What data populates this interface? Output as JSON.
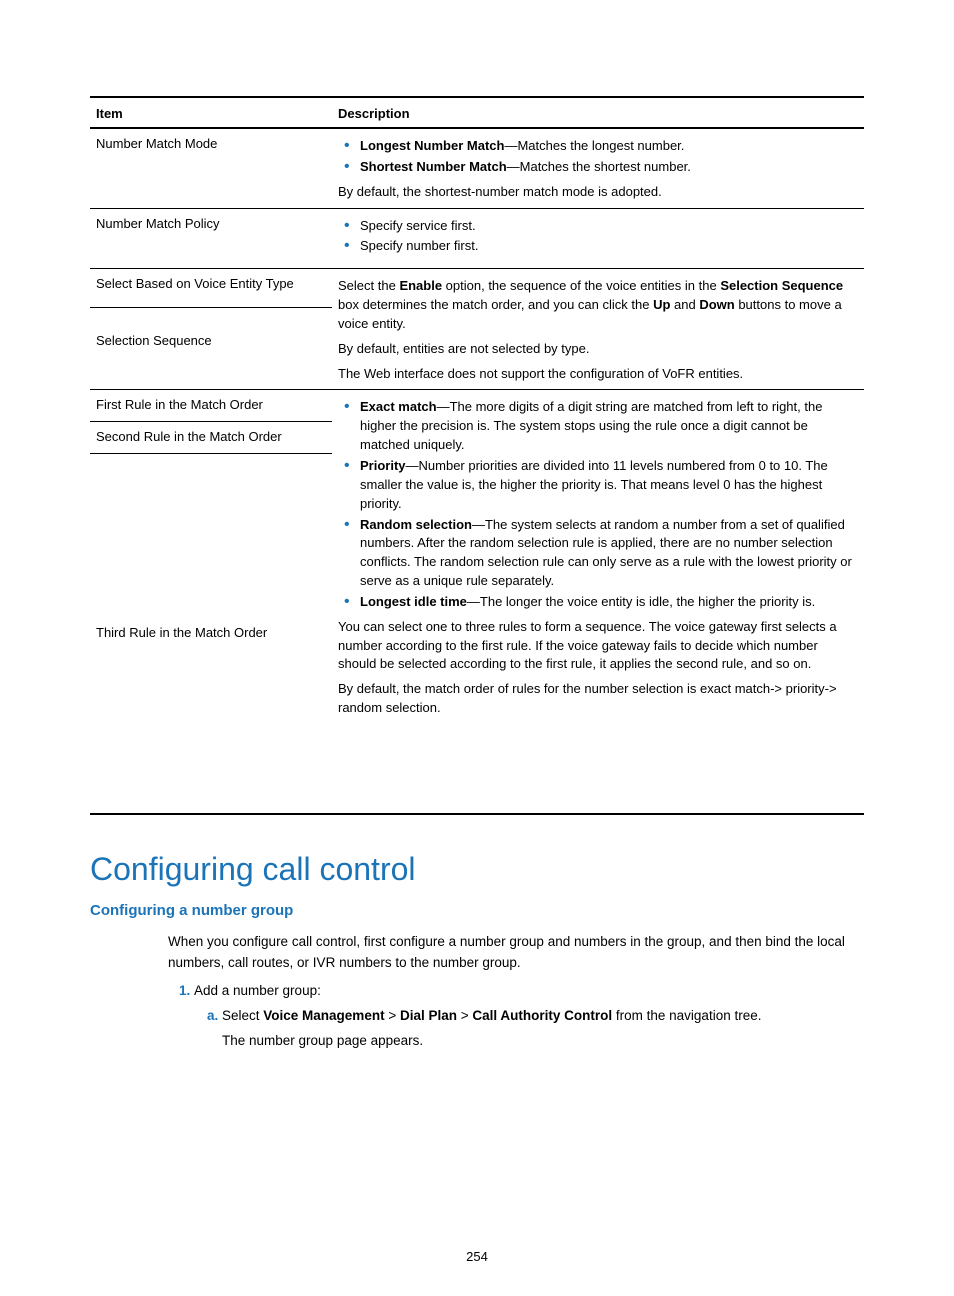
{
  "colors": {
    "accent": "#1b73b8",
    "text": "#000000",
    "bg": "#ffffff",
    "border_thick": "#000000",
    "border_thin": "#000000"
  },
  "table": {
    "header": {
      "item": "Item",
      "desc": "Description"
    },
    "rows": [
      {
        "key": "row_nmm",
        "item": "Number Match Mode",
        "bullets": [
          {
            "b": "Longest Number Match",
            "t": "—Matches the longest number."
          },
          {
            "b": "Shortest Number Match",
            "t": "—Matches the shortest number."
          }
        ],
        "after": [
          "By default, the shortest-number match mode is adopted."
        ]
      },
      {
        "key": "row_nmp",
        "item": "Number Match Policy",
        "bullets": [
          {
            "t": "Specify service first."
          },
          {
            "t": "Specify number first."
          }
        ]
      },
      {
        "key": "row_sbvet",
        "item": "Select Based on Voice Entity Type"
      },
      {
        "key": "row_ss",
        "item": "Selection Sequence",
        "para_html": [
          "Select the <b>Enable</b> option, the sequence of the voice entities in the <b>Selection Sequence</b> box determines the match order, and you can click the <b>Up</b> and <b>Down</b> buttons to move a voice entity.",
          "By default, entities are not selected by type.",
          "The Web interface does not support the configuration of VoFR entities."
        ]
      },
      {
        "key": "row_first",
        "item": "First Rule in the Match Order"
      },
      {
        "key": "row_second",
        "item": "Second Rule in the Match Order"
      },
      {
        "key": "row_third",
        "item": "Third Rule in the Match Order",
        "bullets": [
          {
            "b": "Exact match",
            "t": "—The more digits of a digit string are matched from left to right, the higher the precision is. The system stops using the rule once a digit cannot be matched uniquely."
          },
          {
            "b": "Priority",
            "t": "—Number priorities are divided into 11 levels numbered from 0 to 10. The smaller the value is, the higher the priority is. That means level 0 has the highest priority."
          },
          {
            "b": "Random selection",
            "t": "—The system selects at random a number from a set of qualified numbers. After the random selection rule is applied, there are no number selection conflicts. The random selection rule can only serve as a rule with the lowest priority or serve as a unique rule separately."
          },
          {
            "b": "Longest idle time",
            "t": "—The longer the voice entity is idle, the higher the priority is."
          }
        ],
        "after": [
          "You can select one to three rules to form a sequence. The voice gateway first selects a number according to the first rule. If the voice gateway fails to decide which number should be selected according to the first rule, it applies the second rule, and so on.",
          "By default, the match order of rules for the number selection is exact match-> priority-> random selection."
        ]
      }
    ]
  },
  "heading1": "Configuring call control",
  "heading2": "Configuring a number group",
  "intro": "When you configure call control, first configure a number group and numbers in the group, and then bind the local numbers, call routes, or IVR numbers to the number group.",
  "step1": "Add a number group:",
  "step1a_html": "Select <b>Voice Management</b> > <b>Dial Plan</b> > <b>Call Authority Control</b> from the navigation tree.",
  "step1a_after": "The number group page appears.",
  "page_number": "254"
}
